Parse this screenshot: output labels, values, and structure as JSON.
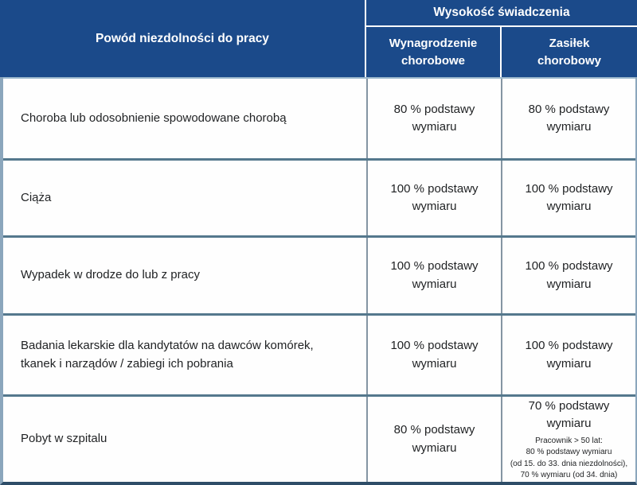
{
  "colors": {
    "header_bg": "#1B4A8A",
    "header_text": "#FFFFFF",
    "body_bg": "#FEFEFE",
    "body_text": "#1F2123",
    "row_divider": "#54788D",
    "col_divider": "#8495A3",
    "outer_border": "#8BA6BC",
    "bottom_border": "#2E4D68",
    "header_underline": "#9DB8CC"
  },
  "header": {
    "reason": "Powód niezdolności do pracy",
    "benefit_title": "Wysokość świadczenia",
    "sub_left": "Wynagrodzenie chorobowe",
    "sub_right": "Zasiłek chorobowy"
  },
  "rows": [
    {
      "reason": "Choroba lub odosobnienie spowodowane chorobą",
      "wynagrodzenie": "80 % podstawy wymiaru",
      "zasilek": "80 % podstawy wymiaru"
    },
    {
      "reason": "Ciąża",
      "wynagrodzenie": "100 % podstawy wymiaru",
      "zasilek": "100 % podstawy wymiaru"
    },
    {
      "reason": "Wypadek  w drodze do lub z pracy",
      "wynagrodzenie": "100 % podstawy wymiaru",
      "zasilek": "100 % podstawy wymiaru"
    },
    {
      "reason": "Badania lekarskie dla kandytatów na dawców komórek, tkanek i narządów / zabiegi ich pobrania",
      "wynagrodzenie": "100 % podstawy wymiaru",
      "zasilek": "100 % podstawy wymiaru"
    },
    {
      "reason": "Pobyt w szpitalu",
      "wynagrodzenie": "80 % podstawy wymiaru",
      "zasilek": "70 % podstawy wymiaru",
      "zasilek_note": [
        "Pracownik > 50 lat:",
        "80 % podstawy wymiaru",
        "(od 15. do 33. dnia niezdolności),",
        "70 % wymiaru (od 34. dnia)"
      ]
    }
  ]
}
